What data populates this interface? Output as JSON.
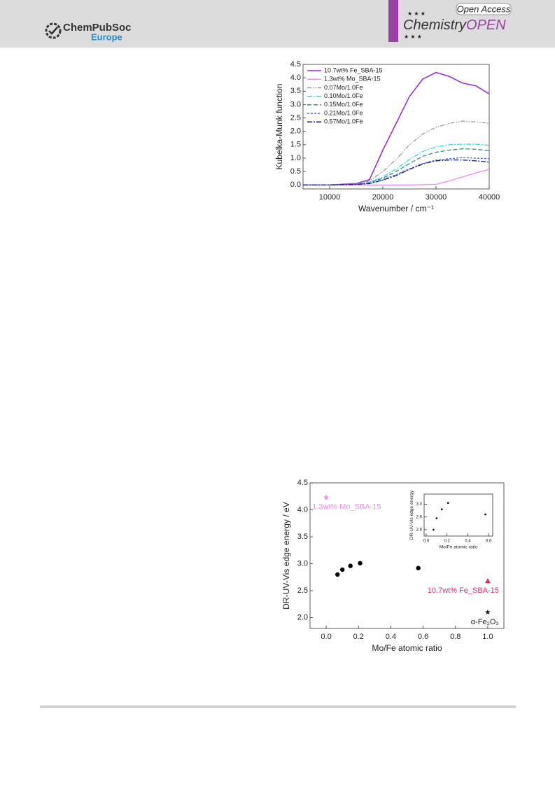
{
  "header": {
    "society": "ChemPubSoc",
    "society_region": "Europe",
    "badge": "Open Access",
    "journal_main": "Chemistry",
    "journal_suffix": "OPEN"
  },
  "chart_data": [
    {
      "type": "line",
      "xlabel": "Wavenumber / cm⁻¹",
      "ylabel": "Kubelka-Munk function",
      "x": [
        5000,
        10000,
        15000,
        17500,
        20000,
        22500,
        25000,
        27500,
        30000,
        32500,
        35000,
        37500,
        40000
      ],
      "xlim": [
        5000,
        40000
      ],
      "xticks": [
        10000,
        20000,
        30000,
        40000
      ],
      "ylim": [
        -0.15,
        4.5
      ],
      "yticks": [
        {
          "value": 0,
          "label": "0.0"
        },
        0.5,
        {
          "value": 1,
          "label": "1.0"
        },
        1.5,
        {
          "value": 2,
          "label": "2.0"
        },
        2.5,
        {
          "value": 3,
          "label": "3.0"
        },
        3.5,
        {
          "value": 4,
          "label": "4.0"
        },
        4.5
      ],
      "legend": "upper left",
      "series": [
        {
          "name": "10.7wt% Fe_SBA-15",
          "color": "#9b30d9",
          "style": "solid",
          "values": [
            0,
            0,
            0.05,
            0.2,
            1.3,
            2.3,
            3.3,
            3.95,
            4.2,
            4.05,
            3.8,
            3.7,
            3.4
          ]
        },
        {
          "name": "1.3wt% Mo_SBA-15",
          "color": "#f08cf0",
          "style": "solid",
          "values": [
            0,
            0,
            0,
            0,
            0,
            0,
            0,
            0.01,
            0.02,
            0.15,
            0.3,
            0.45,
            0.58
          ]
        },
        {
          "name": "0.07Mo/1.0Fe",
          "color": "#999999",
          "style": "dashdotdot",
          "values": [
            0,
            0,
            0.03,
            0.15,
            0.5,
            0.95,
            1.5,
            1.9,
            2.15,
            2.3,
            2.38,
            2.35,
            2.3
          ]
        },
        {
          "name": "0.10Mo/1.0Fe",
          "color": "#33dddd",
          "style": "dashdot",
          "values": [
            0,
            0,
            0.02,
            0.1,
            0.3,
            0.6,
            0.95,
            1.25,
            1.42,
            1.5,
            1.52,
            1.52,
            1.48
          ]
        },
        {
          "name": "0.15Mo/1.0Fe",
          "color": "#2a8f8f",
          "style": "dashed",
          "values": [
            0,
            0,
            0.02,
            0.08,
            0.25,
            0.5,
            0.8,
            1.07,
            1.22,
            1.3,
            1.35,
            1.33,
            1.28
          ]
        },
        {
          "name": "0.21Mo/1.0Fe",
          "color": "#4d6ee8",
          "style": "shortdash",
          "values": [
            0,
            0,
            0.02,
            0.06,
            0.2,
            0.38,
            0.6,
            0.8,
            0.93,
            0.98,
            1.02,
            1.0,
            0.98
          ]
        },
        {
          "name": "0.57Mo/1.0Fe",
          "color": "#1a1a8c",
          "style": "dashdot",
          "values": [
            0,
            0,
            0.02,
            0.05,
            0.18,
            0.35,
            0.58,
            0.78,
            0.9,
            0.93,
            0.93,
            0.9,
            0.85
          ]
        }
      ]
    },
    {
      "type": "scatter",
      "xlabel": "Mo/Fe atomic ratio",
      "ylabel": "DR-UV-Vis edge energy / eV",
      "xlim": [
        -0.1,
        1.1
      ],
      "xticks": [
        {
          "value": 0,
          "label": "0.0"
        },
        0.2,
        0.4,
        0.6,
        0.8,
        {
          "value": 1,
          "label": "1.0"
        }
      ],
      "ylim": [
        1.8,
        4.5
      ],
      "yticks": [
        {
          "value": 2,
          "label": "2.0"
        },
        2.5,
        {
          "value": 3,
          "label": "3.0"
        },
        3.5,
        {
          "value": 4,
          "label": "4.0"
        },
        4.5
      ],
      "series": [
        {
          "color": "#000000",
          "x": [
            0.07,
            0.1,
            0.15,
            0.21,
            0.57
          ],
          "values": [
            2.8,
            2.89,
            2.96,
            3.01,
            2.92
          ]
        }
      ],
      "annotations": [
        {
          "x": 0,
          "y": 4.23,
          "text": "1.3wt% Mo_SBA-15",
          "color": "#f08cf0",
          "marker": "star"
        },
        {
          "x": 1,
          "y": 2.68,
          "text": "10.7wt% Fe_SBA-15",
          "color": "#e0306a",
          "marker": "triangle"
        },
        {
          "x": 1,
          "y": 2.1,
          "text": "α-Fe₂O₃",
          "color": "#222222",
          "marker": "star"
        }
      ],
      "inset": {
        "xlabel": "Mo/Fe atomic ratio",
        "ylabel": "DR-UV-Vis edge energy",
        "xlim": [
          -0.02,
          0.64
        ],
        "xticks": [
          {
            "value": 0,
            "label": "0.0"
          },
          0.2,
          0.4,
          0.6
        ],
        "ylim": [
          2.75,
          3.08
        ],
        "yticks": [
          2.8,
          2.9,
          {
            "value": 3,
            "label": "3.0"
          }
        ]
      }
    }
  ]
}
